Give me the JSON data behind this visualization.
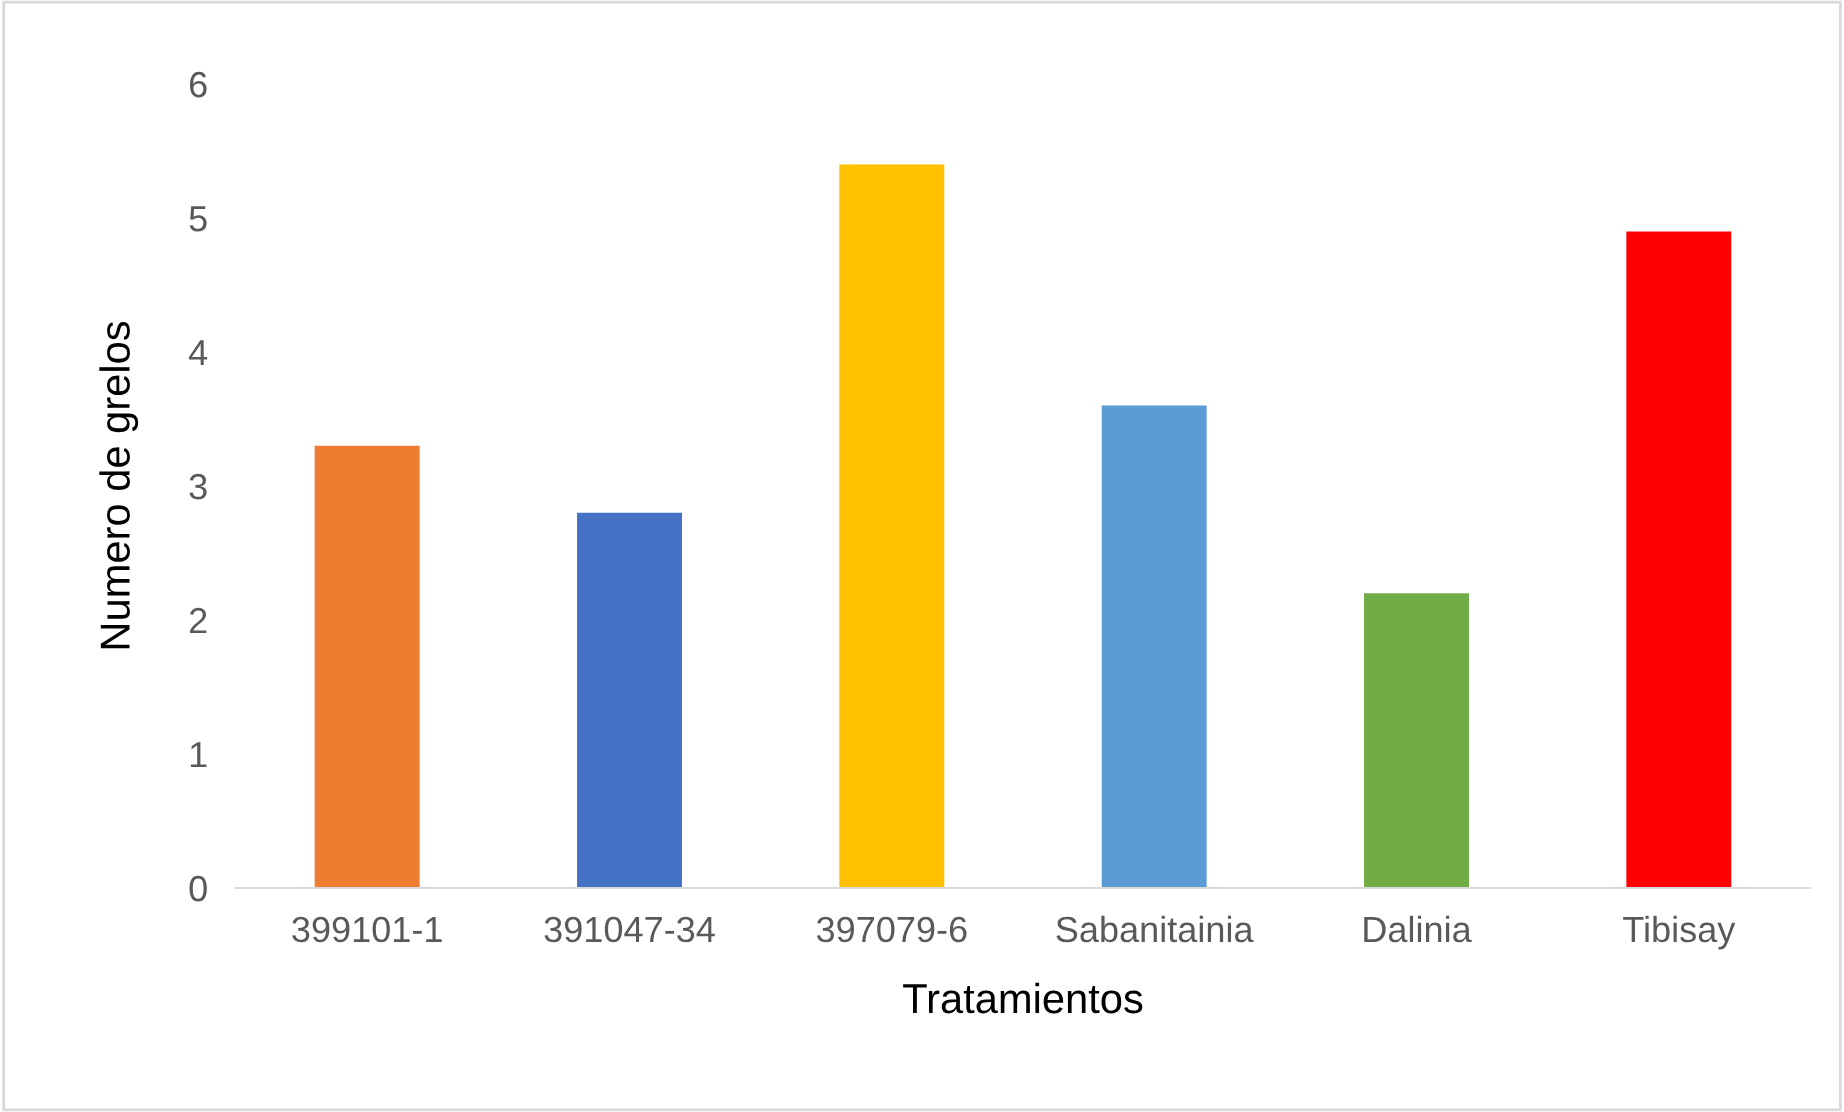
{
  "chart_data": {
    "type": "bar",
    "xlabel": "Tratamientos",
    "ylabel": "Numero de grelos",
    "categories": [
      "399101-1",
      "391047-34",
      "397079-6",
      "Sabanitainia",
      "Dalinia",
      "Tibisay"
    ],
    "values": [
      3.3,
      2.8,
      5.4,
      3.6,
      2.2,
      4.9
    ],
    "colors": [
      "#ed7d31",
      "#4472c4",
      "#ffc000",
      "#5b9bd5",
      "#70ad47",
      "#ff0000"
    ],
    "ylim": [
      0,
      6
    ],
    "yticks": [
      0,
      1,
      2,
      3,
      4,
      5,
      6
    ],
    "grid": false,
    "legend": false
  }
}
